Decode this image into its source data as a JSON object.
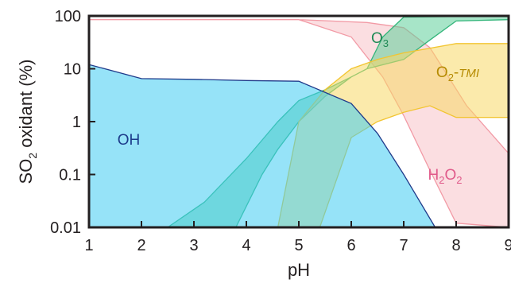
{
  "chart_data": {
    "type": "area",
    "title": "",
    "xlabel": "pH",
    "ylabel": "SO2 oxidant (%)",
    "x_scale": "linear",
    "y_scale": "log",
    "xlim": [
      1,
      9
    ],
    "ylim": [
      0.01,
      100
    ],
    "x_ticks": [
      1,
      2,
      3,
      4,
      5,
      6,
      7,
      8,
      9
    ],
    "x_tick_labels": [
      "1",
      "2",
      "3",
      "4",
      "5",
      "6",
      "7",
      "8",
      "9"
    ],
    "y_ticks": [
      0.01,
      0.1,
      1,
      10,
      100
    ],
    "y_tick_labels": [
      "0.01",
      "0.1",
      "1",
      "10",
      "100"
    ],
    "grid": false,
    "series": [
      {
        "name": "H2O2",
        "label_text": "H2O2",
        "color": "#f29aa5",
        "fill": "#f7c3c8",
        "label_color": "#e05a8a",
        "upper": [
          [
            1,
            85
          ],
          [
            5,
            85
          ],
          [
            6.3,
            75
          ],
          [
            7,
            60
          ],
          [
            7.5,
            25
          ],
          [
            8.2,
            2
          ],
          [
            9,
            0.25
          ]
        ],
        "lower": [
          [
            1,
            85
          ],
          [
            5,
            85
          ],
          [
            6,
            40
          ],
          [
            6.6,
            7
          ],
          [
            7,
            1.3
          ],
          [
            7.5,
            0.12
          ],
          [
            8,
            0.012
          ],
          [
            9,
            0.01
          ]
        ]
      },
      {
        "name": "O3",
        "label_text": "O3",
        "color": "#33b57a",
        "fill": "#5fd09a",
        "label_color": "#1f8a55",
        "upper": [
          [
            2.5,
            0.01
          ],
          [
            3.2,
            0.03
          ],
          [
            4,
            0.2
          ],
          [
            4.6,
            1
          ],
          [
            5,
            2.5
          ],
          [
            5.5,
            4
          ],
          [
            6,
            7
          ],
          [
            6.3,
            10
          ],
          [
            6.6,
            40
          ],
          [
            7,
            95
          ],
          [
            9,
            100
          ]
        ],
        "lower": [
          [
            3.8,
            0.01
          ],
          [
            4.3,
            0.1
          ],
          [
            4.6,
            0.3
          ],
          [
            5,
            1
          ],
          [
            5.5,
            3
          ],
          [
            6,
            7
          ],
          [
            6.3,
            10
          ],
          [
            7,
            15
          ],
          [
            7.5,
            35
          ],
          [
            8,
            80
          ],
          [
            9,
            85
          ]
        ]
      },
      {
        "name": "O2-TMI",
        "label_text": "O2-TMI",
        "color": "#f2c531",
        "fill": "#f8d966",
        "label_color": "#b58a00",
        "upper": [
          [
            4.6,
            0.01
          ],
          [
            5,
            1
          ],
          [
            5.5,
            4
          ],
          [
            6,
            10
          ],
          [
            6.5,
            15
          ],
          [
            7,
            20
          ],
          [
            8,
            30
          ],
          [
            9,
            30
          ]
        ],
        "lower": [
          [
            5.4,
            0.01
          ],
          [
            6,
            0.5
          ],
          [
            6.5,
            1
          ],
          [
            7,
            1.5
          ],
          [
            7.5,
            2
          ],
          [
            8,
            1.2
          ],
          [
            9,
            1.2
          ]
        ]
      },
      {
        "name": "OH",
        "label_text": "OH",
        "color": "#1f3a8a",
        "fill": "#40ccf2",
        "label_color": "#1c3a8a",
        "upper": [
          [
            1,
            12
          ],
          [
            2,
            6.5
          ],
          [
            3,
            6.3
          ],
          [
            4,
            6
          ],
          [
            5,
            5.8
          ],
          [
            6,
            2.2
          ],
          [
            6.5,
            0.6
          ],
          [
            7,
            0.1
          ],
          [
            7.6,
            0.01
          ]
        ],
        "lower": [
          [
            1,
            0.01
          ],
          [
            7.6,
            0.01
          ]
        ]
      }
    ],
    "annotations": [
      {
        "series": "OH",
        "text": "OH"
      },
      {
        "series": "O3",
        "text": "O3"
      },
      {
        "series": "O2-TMI",
        "text": "O2-TMI"
      },
      {
        "series": "H2O2",
        "text": "H2O2"
      }
    ]
  }
}
